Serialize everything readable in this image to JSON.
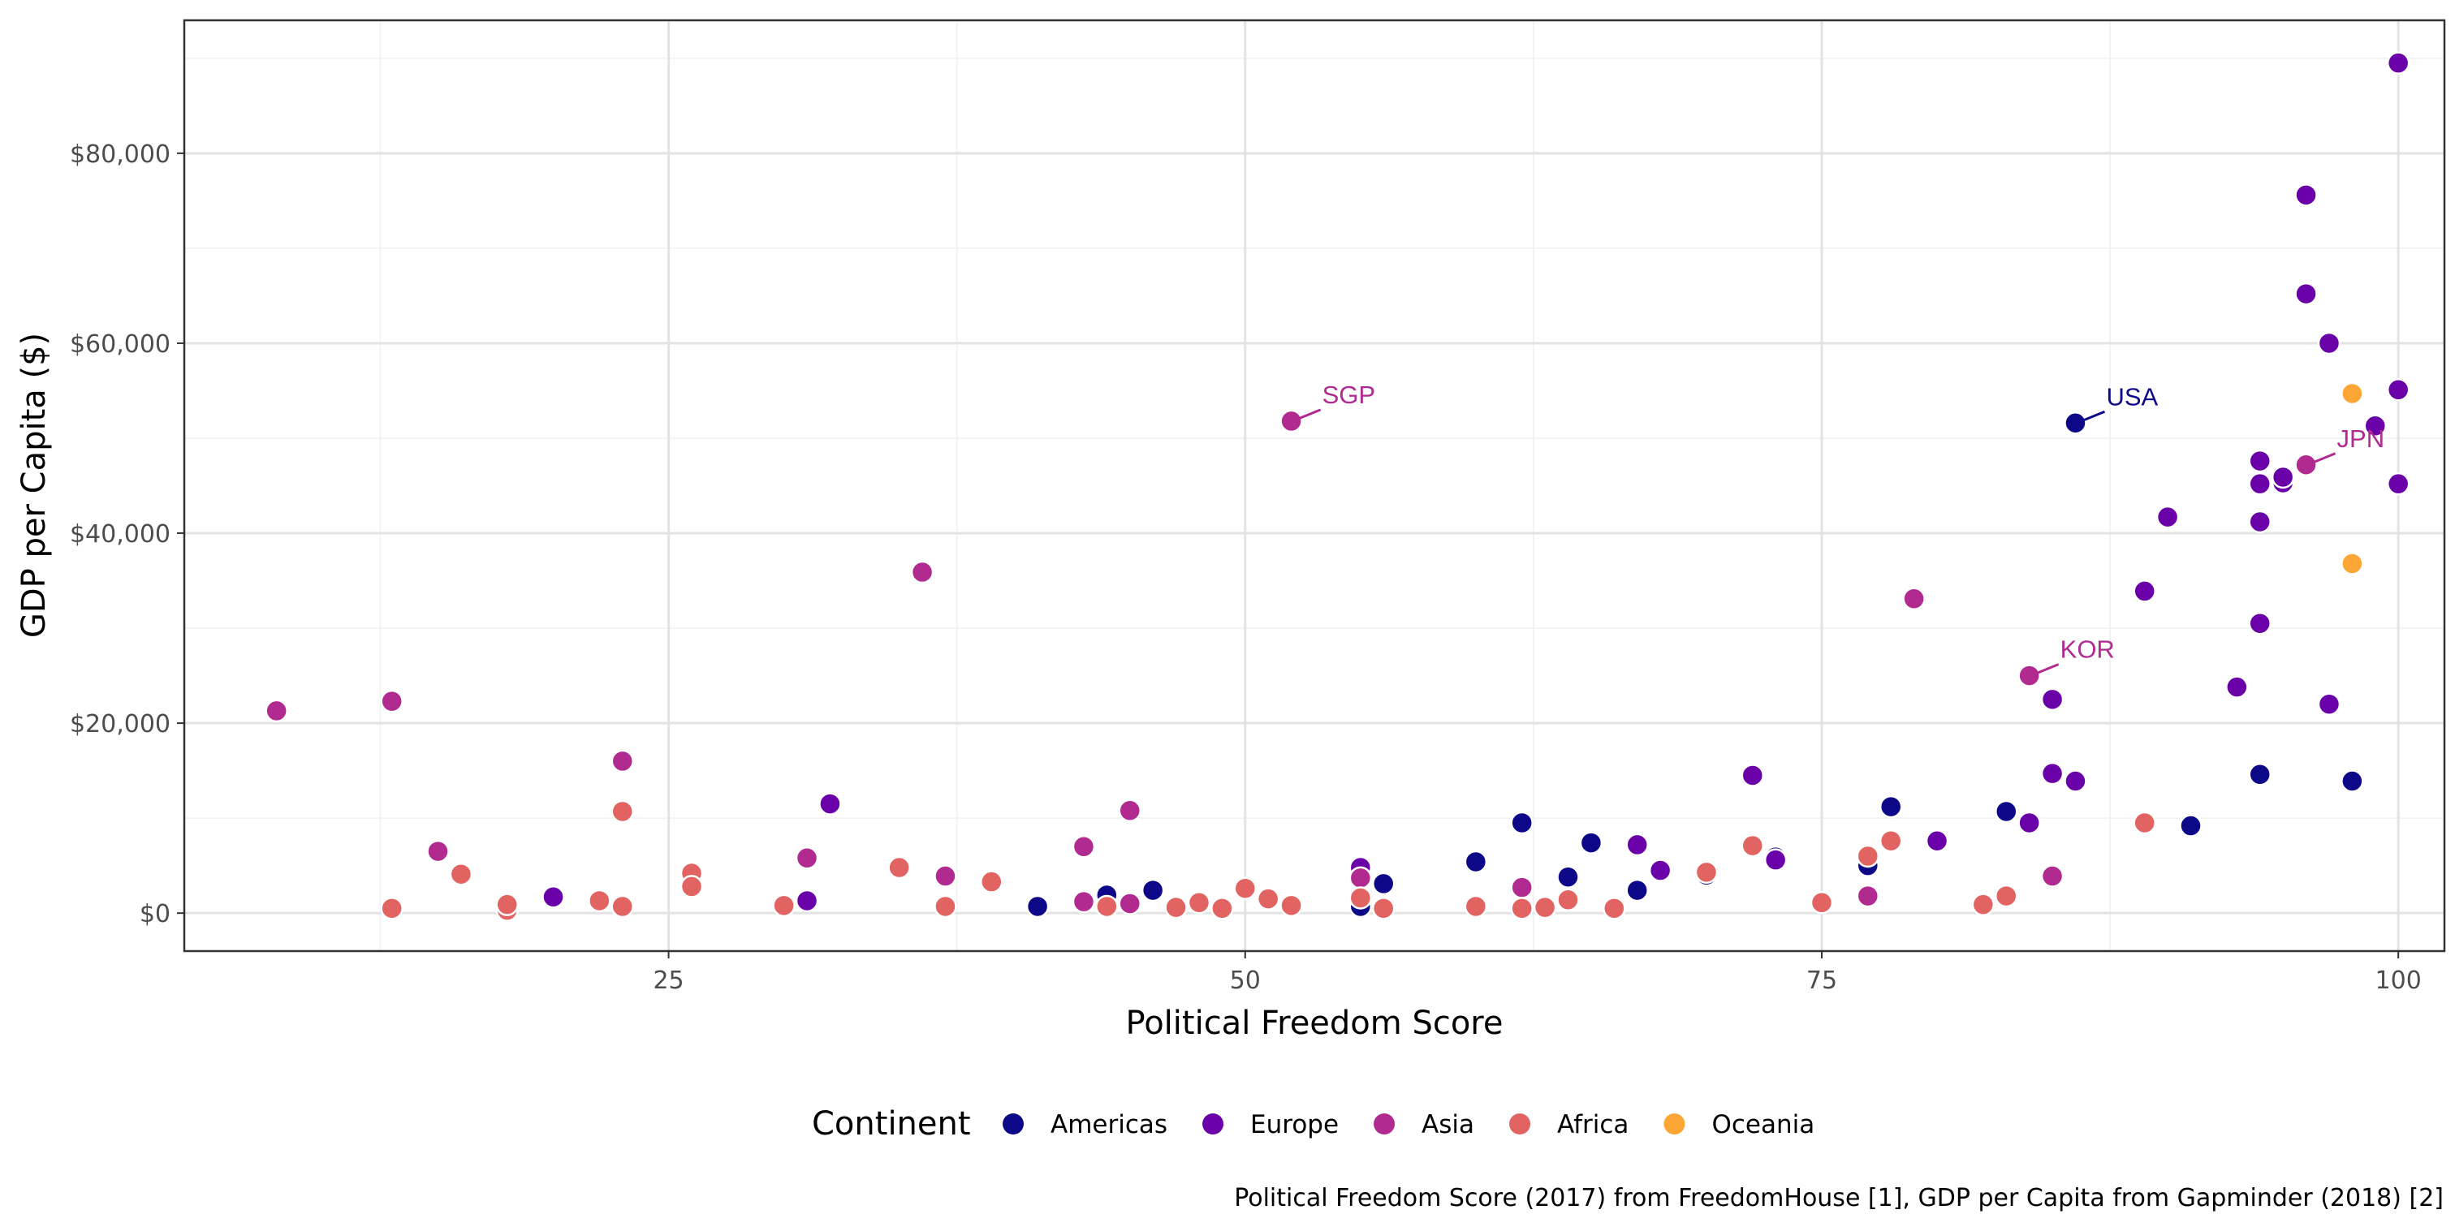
{
  "chart_data": {
    "type": "scatter",
    "xlabel": "Political Freedom Score",
    "ylabel": "GDP per Capita ($)",
    "caption": "Political Freedom Score (2017) from FreedomHouse [1], GDP per Capita from Gapminder (2018) [2]",
    "xlim": [
      4,
      102
    ],
    "ylim": [
      -4000,
      94000
    ],
    "x_ticks": [
      25,
      50,
      75,
      100
    ],
    "y_ticks": [
      {
        "value": 0,
        "label": "$0"
      },
      {
        "value": 20000,
        "label": "$20,000"
      },
      {
        "value": 40000,
        "label": "$40,000"
      },
      {
        "value": 60000,
        "label": "$60,000"
      },
      {
        "value": 80000,
        "label": "$80,000"
      }
    ],
    "grid": true,
    "legend": {
      "title": "Continent",
      "position": "bottom"
    },
    "series": [
      {
        "name": "Americas",
        "color": "#0d0887",
        "points": [
          [
            41,
            700
          ],
          [
            44,
            1900
          ],
          [
            46,
            2400
          ],
          [
            55,
            700
          ],
          [
            56,
            3100
          ],
          [
            60,
            5400
          ],
          [
            62,
            9500
          ],
          [
            64,
            3800
          ],
          [
            65,
            7400
          ],
          [
            67,
            2400
          ],
          [
            70,
            4000
          ],
          [
            73,
            5900
          ],
          [
            77,
            5000
          ],
          [
            78,
            11200
          ],
          [
            83,
            10700
          ],
          [
            86,
            51600
          ],
          [
            91,
            9200
          ],
          [
            94,
            14600
          ],
          [
            98,
            13900
          ]
        ]
      },
      {
        "name": "Europe",
        "color": "#6a00a8",
        "points": [
          [
            20,
            1700
          ],
          [
            31,
            1300
          ],
          [
            32,
            11500
          ],
          [
            55,
            4800
          ],
          [
            67,
            7200
          ],
          [
            68,
            4500
          ],
          [
            72,
            14500
          ],
          [
            73,
            5600
          ],
          [
            80,
            7600
          ],
          [
            84,
            9500
          ],
          [
            85,
            22500
          ],
          [
            85,
            14700
          ],
          [
            86,
            13900
          ],
          [
            89,
            33900
          ],
          [
            90,
            41700
          ],
          [
            93,
            23800
          ],
          [
            94,
            30500
          ],
          [
            94,
            41200
          ],
          [
            94,
            45200
          ],
          [
            94,
            47600
          ],
          [
            95,
            45300
          ],
          [
            95,
            45900
          ],
          [
            96,
            75600
          ],
          [
            96,
            65200
          ],
          [
            97,
            60000
          ],
          [
            97,
            22000
          ],
          [
            99,
            51300
          ],
          [
            100,
            89500
          ],
          [
            100,
            55100
          ],
          [
            100,
            45200
          ]
        ]
      },
      {
        "name": "Asia",
        "color": "#b12a90",
        "points": [
          [
            8,
            21300
          ],
          [
            13,
            22300
          ],
          [
            15,
            6500
          ],
          [
            23,
            16000
          ],
          [
            31,
            5800
          ],
          [
            36,
            35900
          ],
          [
            37,
            3900
          ],
          [
            43,
            7000
          ],
          [
            43,
            1200
          ],
          [
            45,
            10800
          ],
          [
            45,
            1000
          ],
          [
            52,
            51800
          ],
          [
            55,
            3700
          ],
          [
            62,
            2700
          ],
          [
            77,
            1800
          ],
          [
            79,
            33100
          ],
          [
            84,
            25000
          ],
          [
            85,
            3900
          ],
          [
            96,
            47200
          ]
        ]
      },
      {
        "name": "Africa",
        "color": "#e16462",
        "points": [
          [
            13,
            500
          ],
          [
            16,
            4100
          ],
          [
            18,
            300
          ],
          [
            18,
            900
          ],
          [
            22,
            1300
          ],
          [
            23,
            700
          ],
          [
            23,
            10700
          ],
          [
            26,
            4200
          ],
          [
            26,
            2800
          ],
          [
            30,
            800
          ],
          [
            35,
            4800
          ],
          [
            37,
            700
          ],
          [
            39,
            3300
          ],
          [
            44,
            700
          ],
          [
            47,
            600
          ],
          [
            48,
            1100
          ],
          [
            49,
            500
          ],
          [
            50,
            2600
          ],
          [
            51,
            1500
          ],
          [
            52,
            800
          ],
          [
            55,
            1600
          ],
          [
            56,
            500
          ],
          [
            60,
            700
          ],
          [
            62,
            500
          ],
          [
            63,
            600
          ],
          [
            64,
            1400
          ],
          [
            66,
            500
          ],
          [
            70,
            4300
          ],
          [
            72,
            7100
          ],
          [
            75,
            1100
          ],
          [
            77,
            6000
          ],
          [
            78,
            7600
          ],
          [
            82,
            900
          ],
          [
            83,
            1800
          ],
          [
            89,
            9500
          ]
        ]
      },
      {
        "name": "Oceania",
        "color": "#fca636",
        "points": [
          [
            98,
            54700
          ],
          [
            98,
            36800
          ]
        ]
      }
    ],
    "annotations": [
      {
        "label": "SGP",
        "x": 52,
        "y": 51800,
        "color": "#b12a90"
      },
      {
        "label": "USA",
        "x": 86,
        "y": 51600,
        "color": "#0d0887"
      },
      {
        "label": "JPN",
        "x": 96,
        "y": 47200,
        "color": "#b12a90"
      },
      {
        "label": "KOR",
        "x": 84,
        "y": 25000,
        "color": "#b12a90"
      }
    ]
  }
}
